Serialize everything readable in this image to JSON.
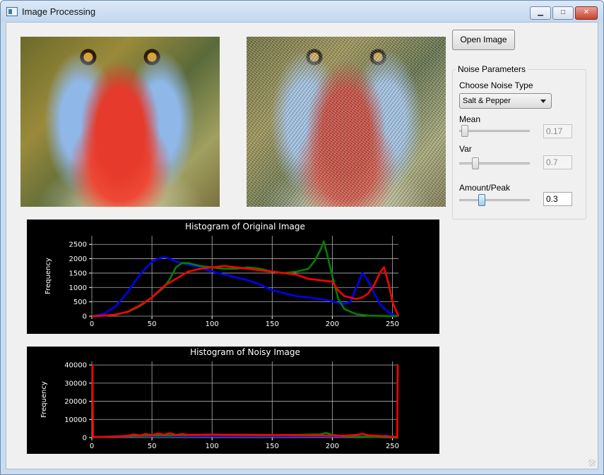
{
  "window": {
    "title": "Image Processing",
    "minimize_glyph": "▁",
    "maximize_glyph": "□",
    "close_glyph": "✕"
  },
  "toolbar": {
    "open_label": "Open Image"
  },
  "noise": {
    "group_title": "Noise Parameters",
    "type_label": "Choose Noise Type",
    "type_value": "Salt & Pepper",
    "mean_label": "Mean",
    "mean_value": "0.17",
    "mean_fraction": 0.03,
    "var_label": "Var",
    "var_value": "0.7",
    "var_fraction": 0.2,
    "amount_label": "Amount/Peak",
    "amount_value": "0.3",
    "amount_fraction": 0.3
  },
  "images": {
    "original_icon": "mandrill-image",
    "noisy_icon": "noisy-mandrill-image"
  },
  "colors": {
    "blue": "#0000ff",
    "green": "#008000",
    "red": "#ff0000",
    "grid": "#b0b0b0",
    "axis_text": "#ffffff"
  },
  "chart_data": [
    {
      "type": "line",
      "title": "Histogram of Original Image",
      "xlabel": "",
      "ylabel": "Frequency",
      "xlim": [
        0,
        255
      ],
      "ylim": [
        0,
        2800
      ],
      "xticks": [
        0,
        50,
        100,
        150,
        200,
        250
      ],
      "yticks": [
        0,
        500,
        1000,
        1500,
        2000,
        2500
      ],
      "grid": true,
      "series": [
        {
          "color": "blue",
          "x": [
            0,
            10,
            20,
            30,
            40,
            50,
            55,
            60,
            65,
            70,
            75,
            80,
            90,
            100,
            110,
            120,
            130,
            140,
            150,
            160,
            170,
            180,
            190,
            200,
            205,
            210,
            215,
            220,
            225,
            228,
            232,
            236,
            240,
            245,
            250,
            255
          ],
          "y": [
            0,
            80,
            350,
            850,
            1450,
            1900,
            2000,
            2050,
            2000,
            1900,
            1850,
            1800,
            1700,
            1550,
            1450,
            1350,
            1250,
            1100,
            900,
            800,
            700,
            650,
            600,
            520,
            450,
            430,
            500,
            1000,
            1500,
            1350,
            1050,
            700,
            400,
            200,
            60,
            0
          ]
        },
        {
          "color": "green",
          "x": [
            0,
            10,
            20,
            30,
            40,
            50,
            60,
            65,
            70,
            75,
            80,
            90,
            100,
            110,
            120,
            130,
            140,
            150,
            160,
            170,
            180,
            185,
            190,
            193,
            196,
            200,
            205,
            210,
            220,
            230,
            240,
            250,
            255
          ],
          "y": [
            0,
            20,
            50,
            150,
            350,
            650,
            1000,
            1300,
            1700,
            1850,
            1850,
            1750,
            1700,
            1650,
            1650,
            1700,
            1650,
            1550,
            1500,
            1550,
            1650,
            1900,
            2300,
            2600,
            2100,
            1400,
            600,
            250,
            70,
            20,
            10,
            5,
            0
          ]
        },
        {
          "color": "red",
          "x": [
            0,
            10,
            20,
            30,
            40,
            50,
            60,
            70,
            80,
            90,
            100,
            110,
            120,
            130,
            140,
            150,
            160,
            170,
            180,
            190,
            200,
            205,
            210,
            215,
            220,
            225,
            230,
            235,
            240,
            243,
            247,
            250,
            255
          ],
          "y": [
            0,
            20,
            60,
            160,
            380,
            650,
            1050,
            1300,
            1550,
            1650,
            1700,
            1750,
            1700,
            1650,
            1600,
            1550,
            1500,
            1450,
            1300,
            1250,
            1200,
            900,
            700,
            650,
            600,
            650,
            800,
            1100,
            1550,
            1700,
            1100,
            500,
            0
          ]
        }
      ]
    },
    {
      "type": "line",
      "title": "Histogram of Noisy Image",
      "xlabel": "",
      "ylabel": "Frequency",
      "xlim": [
        0,
        255
      ],
      "ylim": [
        0,
        42000
      ],
      "xticks": [
        0,
        50,
        100,
        150,
        200,
        250
      ],
      "yticks": [
        0,
        10000,
        20000,
        30000,
        40000
      ],
      "grid": true,
      "series": [
        {
          "color": "blue",
          "x": [
            0,
            1,
            2,
            50,
            100,
            150,
            200,
            220,
            225,
            230,
            240,
            245,
            250,
            253,
            254,
            255
          ],
          "y": [
            0,
            0,
            300,
            900,
            800,
            800,
            700,
            600,
            800,
            500,
            400,
            1200,
            200,
            0,
            0,
            0
          ]
        },
        {
          "color": "green",
          "x": [
            0,
            1,
            2,
            50,
            100,
            150,
            190,
            195,
            200,
            210,
            240,
            253,
            254,
            255
          ],
          "y": [
            0,
            0,
            300,
            1200,
            1500,
            1300,
            1800,
            2600,
            1500,
            800,
            200,
            0,
            0,
            0
          ]
        },
        {
          "color": "red",
          "x": [
            0,
            0.5,
            1,
            2,
            10,
            20,
            30,
            35,
            40,
            45,
            50,
            55,
            60,
            65,
            70,
            75,
            80,
            90,
            100,
            110,
            120,
            130,
            140,
            150,
            160,
            170,
            180,
            190,
            200,
            210,
            220,
            225,
            230,
            240,
            250,
            253,
            254,
            254.5,
            255
          ],
          "y": [
            40000,
            40000,
            200,
            300,
            400,
            600,
            1000,
            1800,
            1200,
            2000,
            1400,
            2200,
            1600,
            2400,
            1500,
            2000,
            1500,
            1600,
            1700,
            1500,
            1600,
            1500,
            1500,
            1400,
            1400,
            1300,
            1200,
            1200,
            1100,
            1000,
            1500,
            2100,
            1300,
            900,
            500,
            400,
            500,
            40000,
            40000
          ]
        }
      ]
    }
  ]
}
